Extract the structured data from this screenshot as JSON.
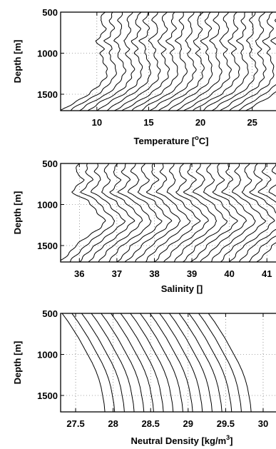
{
  "chart_data": [
    {
      "type": "line",
      "description": "waterfall of staggered temperature profiles vs depth",
      "title": "",
      "xlabel": "Temperature [",
      "xlabel_sup": "o",
      "xlabel_tail": "C]",
      "ylabel": "Depth [m]",
      "xlim": [
        6.5,
        27.5
      ],
      "ylim": [
        500,
        1700
      ],
      "y_inverted": true,
      "xticks": [
        10,
        15,
        20,
        25
      ],
      "yticks": [
        500,
        1000,
        1500
      ],
      "grid": "dotted",
      "series_count": 22,
      "profile_offset": 0.85,
      "series_first": {
        "depth": [
          500,
          600,
          700,
          800,
          850,
          900,
          950,
          1000,
          1100,
          1200,
          1300,
          1400,
          1500,
          1600,
          1700
        ],
        "value": [
          10.8,
          10.3,
          10.8,
          10.4,
          9.9,
          10.3,
          10.6,
          10.3,
          10.7,
          11.0,
          10.8,
          10.2,
          9.2,
          7.8,
          6.6
        ]
      }
    },
    {
      "type": "line",
      "description": "waterfall of staggered salinity profiles vs depth",
      "title": "",
      "xlabel": "Salinity []",
      "ylabel": "Depth [m]",
      "xlim": [
        35.5,
        41.3
      ],
      "ylim": [
        500,
        1700
      ],
      "y_inverted": true,
      "xticks": [
        36,
        37,
        38,
        39,
        40,
        41
      ],
      "yticks": [
        500,
        1000,
        1500
      ],
      "grid": "dotted",
      "series_count": 22,
      "profile_offset": 0.25,
      "series_first": {
        "depth": [
          500,
          600,
          700,
          800,
          850,
          900,
          950,
          1000,
          1100,
          1200,
          1300,
          1400,
          1500,
          1600,
          1700
        ],
        "value": [
          36.0,
          35.9,
          36.1,
          35.9,
          35.8,
          36.0,
          36.2,
          36.3,
          36.5,
          36.7,
          36.5,
          36.2,
          35.9,
          35.7,
          35.5
        ]
      }
    },
    {
      "type": "line",
      "description": "waterfall of staggered neutral density profiles vs depth",
      "title": "",
      "xlabel": "Neutral Density [kg/m",
      "xlabel_sup": "3",
      "xlabel_tail": "]",
      "ylabel": "Depth [m]",
      "xlim": [
        27.3,
        30.2
      ],
      "ylim": [
        500,
        1700
      ],
      "y_inverted": true,
      "xticks": [
        27.5,
        28,
        28.5,
        29,
        29.5,
        30
      ],
      "yticks": [
        500,
        1000,
        1500
      ],
      "grid": "dotted",
      "series_count": 16,
      "profile_offset": 0.13,
      "series_first": {
        "depth": [
          500,
          600,
          700,
          800,
          900,
          1000,
          1100,
          1200,
          1300,
          1400,
          1500,
          1600,
          1700
        ],
        "value": [
          27.32,
          27.4,
          27.47,
          27.54,
          27.6,
          27.66,
          27.72,
          27.77,
          27.81,
          27.84,
          27.86,
          27.88,
          27.89
        ]
      }
    }
  ]
}
